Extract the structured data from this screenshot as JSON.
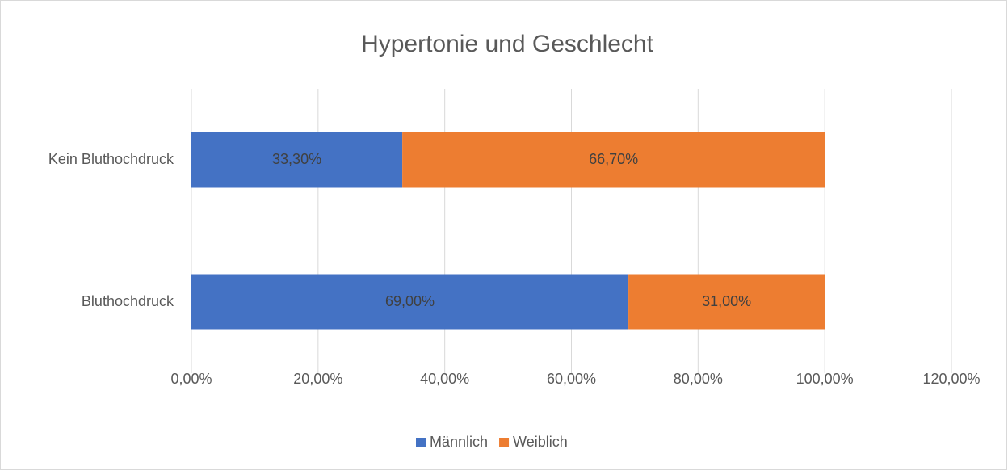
{
  "chart_data": {
    "type": "bar",
    "orientation": "horizontal",
    "stacked": true,
    "title": "Hypertonie und Geschlecht",
    "categories": [
      "Kein Bluthochdruck",
      "Bluthochdruck"
    ],
    "series": [
      {
        "name": "Männlich",
        "color": "#4472c4",
        "values": [
          33.3,
          69
        ],
        "value_labels": [
          "33,30%",
          "69,00%"
        ]
      },
      {
        "name": "Weiblich",
        "color": "#ed7d31",
        "values": [
          66.7,
          31
        ],
        "value_labels": [
          "66,70%",
          "31,00%"
        ]
      }
    ],
    "xlim": [
      0,
      120
    ],
    "xticks": [
      {
        "value": 0,
        "label": "0,00%"
      },
      {
        "value": 20,
        "label": "20,00%"
      },
      {
        "value": 40,
        "label": "40,00%"
      },
      {
        "value": 60,
        "label": "60,00%"
      },
      {
        "value": 80,
        "label": "80,00%"
      },
      {
        "value": 100,
        "label": "100,00%"
      },
      {
        "value": 120,
        "label": "120,00%"
      }
    ],
    "grid": true,
    "legend": "bottom"
  }
}
